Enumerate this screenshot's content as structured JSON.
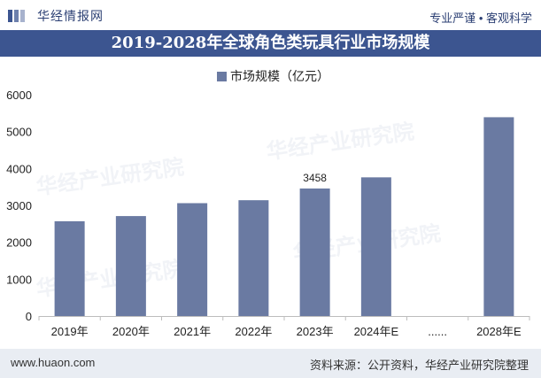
{
  "header": {
    "brand": "华经情报网",
    "tagline": "专业严谨 • 客观科学"
  },
  "colors": {
    "bar": "#6a7aa2",
    "title_bg": "#3c5590",
    "accent": "#2b3f73"
  },
  "chart_data": {
    "type": "bar",
    "title": "2019-2028年全球角色类玩具行业市场规模",
    "legend": [
      "市场规模（亿元）"
    ],
    "categories": [
      "2019年",
      "2020年",
      "2021年",
      "2022年",
      "2023年",
      "2024年E",
      "......",
      "2028年E"
    ],
    "series": [
      {
        "name": "市场规模（亿元）",
        "values": [
          2570,
          2710,
          3060,
          3140,
          3458,
          3760,
          null,
          5390
        ]
      }
    ],
    "data_labels": [
      {
        "index": 4,
        "text": "3458"
      }
    ],
    "ylim": [
      0,
      6000
    ],
    "yticks": [
      "0",
      "1000",
      "2000",
      "3000",
      "4000",
      "5000",
      "6000"
    ],
    "grid": false
  },
  "footer": {
    "website": "www.huaon.com",
    "source": "资料来源：公开资料，华经产业研究院整理"
  }
}
